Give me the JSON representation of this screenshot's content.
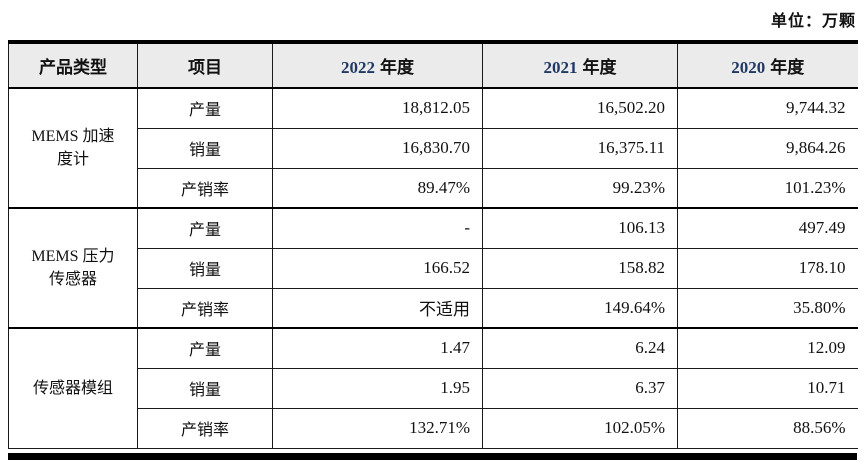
{
  "unit_label": "单位：万颗",
  "table": {
    "header": {
      "product_type": "产品类型",
      "item": "项目",
      "year_cols": [
        {
          "num": "2022",
          "suffix": "年度"
        },
        {
          "num": "2021",
          "suffix": "年度"
        },
        {
          "num": "2020",
          "suffix": "年度"
        }
      ]
    },
    "groups": [
      {
        "product": "MEMS 加速度计",
        "rows": [
          {
            "item": "产量",
            "v2022": "18,812.05",
            "v2021": "16,502.20",
            "v2020": "9,744.32"
          },
          {
            "item": "销量",
            "v2022": "16,830.70",
            "v2021": "16,375.11",
            "v2020": "9,864.26"
          },
          {
            "item": "产销率",
            "v2022": "89.47%",
            "v2021": "99.23%",
            "v2020": "101.23%"
          }
        ]
      },
      {
        "product": "MEMS 压力传感器",
        "rows": [
          {
            "item": "产量",
            "v2022": "-",
            "v2021": "106.13",
            "v2020": "497.49"
          },
          {
            "item": "销量",
            "v2022": "166.52",
            "v2021": "158.82",
            "v2020": "178.10"
          },
          {
            "item": "产销率",
            "v2022": "不适用",
            "v2021": "149.64%",
            "v2020": "35.80%"
          }
        ]
      },
      {
        "product": "传感器模组",
        "rows": [
          {
            "item": "产量",
            "v2022": "1.47",
            "v2021": "6.24",
            "v2020": "12.09"
          },
          {
            "item": "销量",
            "v2022": "1.95",
            "v2021": "6.37",
            "v2020": "10.71"
          },
          {
            "item": "产销率",
            "v2022": "132.71%",
            "v2021": "102.05%",
            "v2020": "88.56%"
          }
        ]
      }
    ]
  }
}
